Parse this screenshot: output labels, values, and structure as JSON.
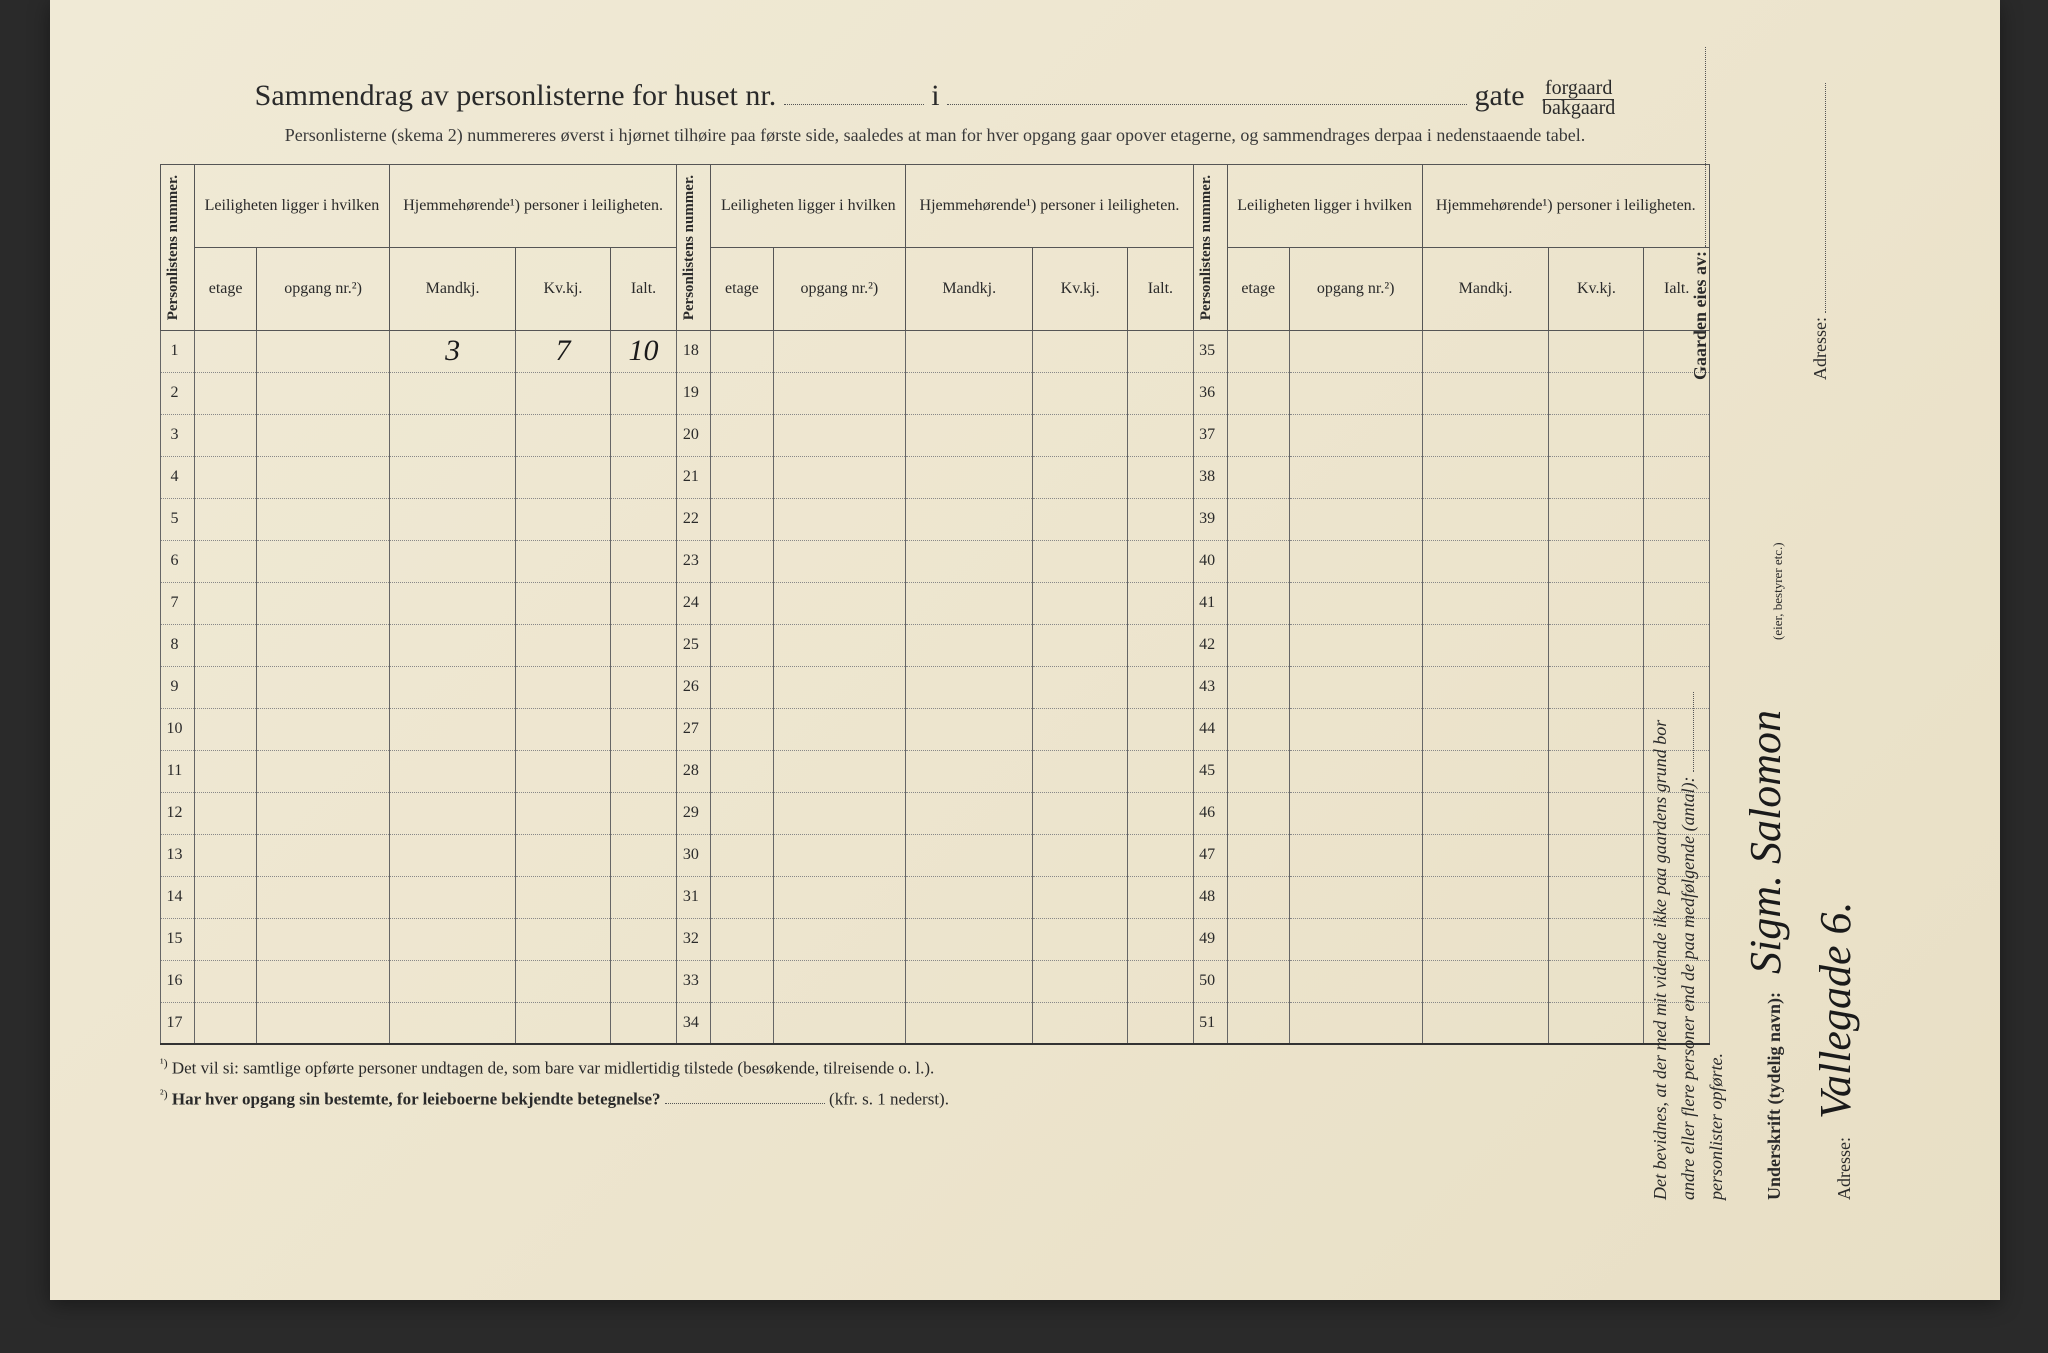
{
  "title": {
    "prefix": "Sammendrag av personlisterne for huset nr.",
    "mid_i": "i",
    "gate": "gate",
    "forgaard": "forgaard",
    "bakgaard": "bakgaard"
  },
  "subtitle": "Personlisterne (skema 2) nummereres øverst i hjørnet tilhøire paa første side, saaledes at man for hver opgang gaar opover etagerne, og sammendrages derpaa i nedenstaaende tabel.",
  "headers": {
    "personlistens_nummer": "Personlistens nummer.",
    "leiligheten": "Leiligheten ligger i hvilken",
    "hjemmehorende": "Hjemmehørende¹) personer i leiligheten.",
    "etage": "etage",
    "opgang": "opgang nr.²)",
    "mandkj": "Mandkj.",
    "kvkj": "Kv.kj.",
    "ialt": "Ialt."
  },
  "section_ranges": [
    [
      1,
      17
    ],
    [
      18,
      34
    ],
    [
      35,
      51
    ]
  ],
  "filled_row1": {
    "mandkj": "3",
    "kvkj": "7",
    "ialt": "10"
  },
  "footnotes": {
    "f1_sup": "¹)",
    "f1": "Det vil si: samtlige opførte personer undtagen de, som bare var midlertidig tilstede (besøkende, tilreisende o. l.).",
    "f2_sup": "²)",
    "f2a": "Har hver opgang sin bestemte, for leieboerne bekjendte betegnelse?",
    "f2b": "(kfr. s. 1 nederst)."
  },
  "sidebar": {
    "attest_line1": "Det bevidnes, at der med mit vidende ikke paa gaardens grund bor",
    "attest_line2": "andre eller flere personer end de paa medfølgende (antal):",
    "attest_line3": "personlister opførte.",
    "underskrift_label": "Underskrift (tydelig navn):",
    "underskrift_value": "Sigm. Salomon",
    "eier_note": "(eier, bestyrer etc.)",
    "adresse_label": "Adresse:",
    "adresse_value": "Vallegade 6.",
    "gaarden_eies": "Gaarden eies av:",
    "adresse2_label": "Adresse:"
  }
}
